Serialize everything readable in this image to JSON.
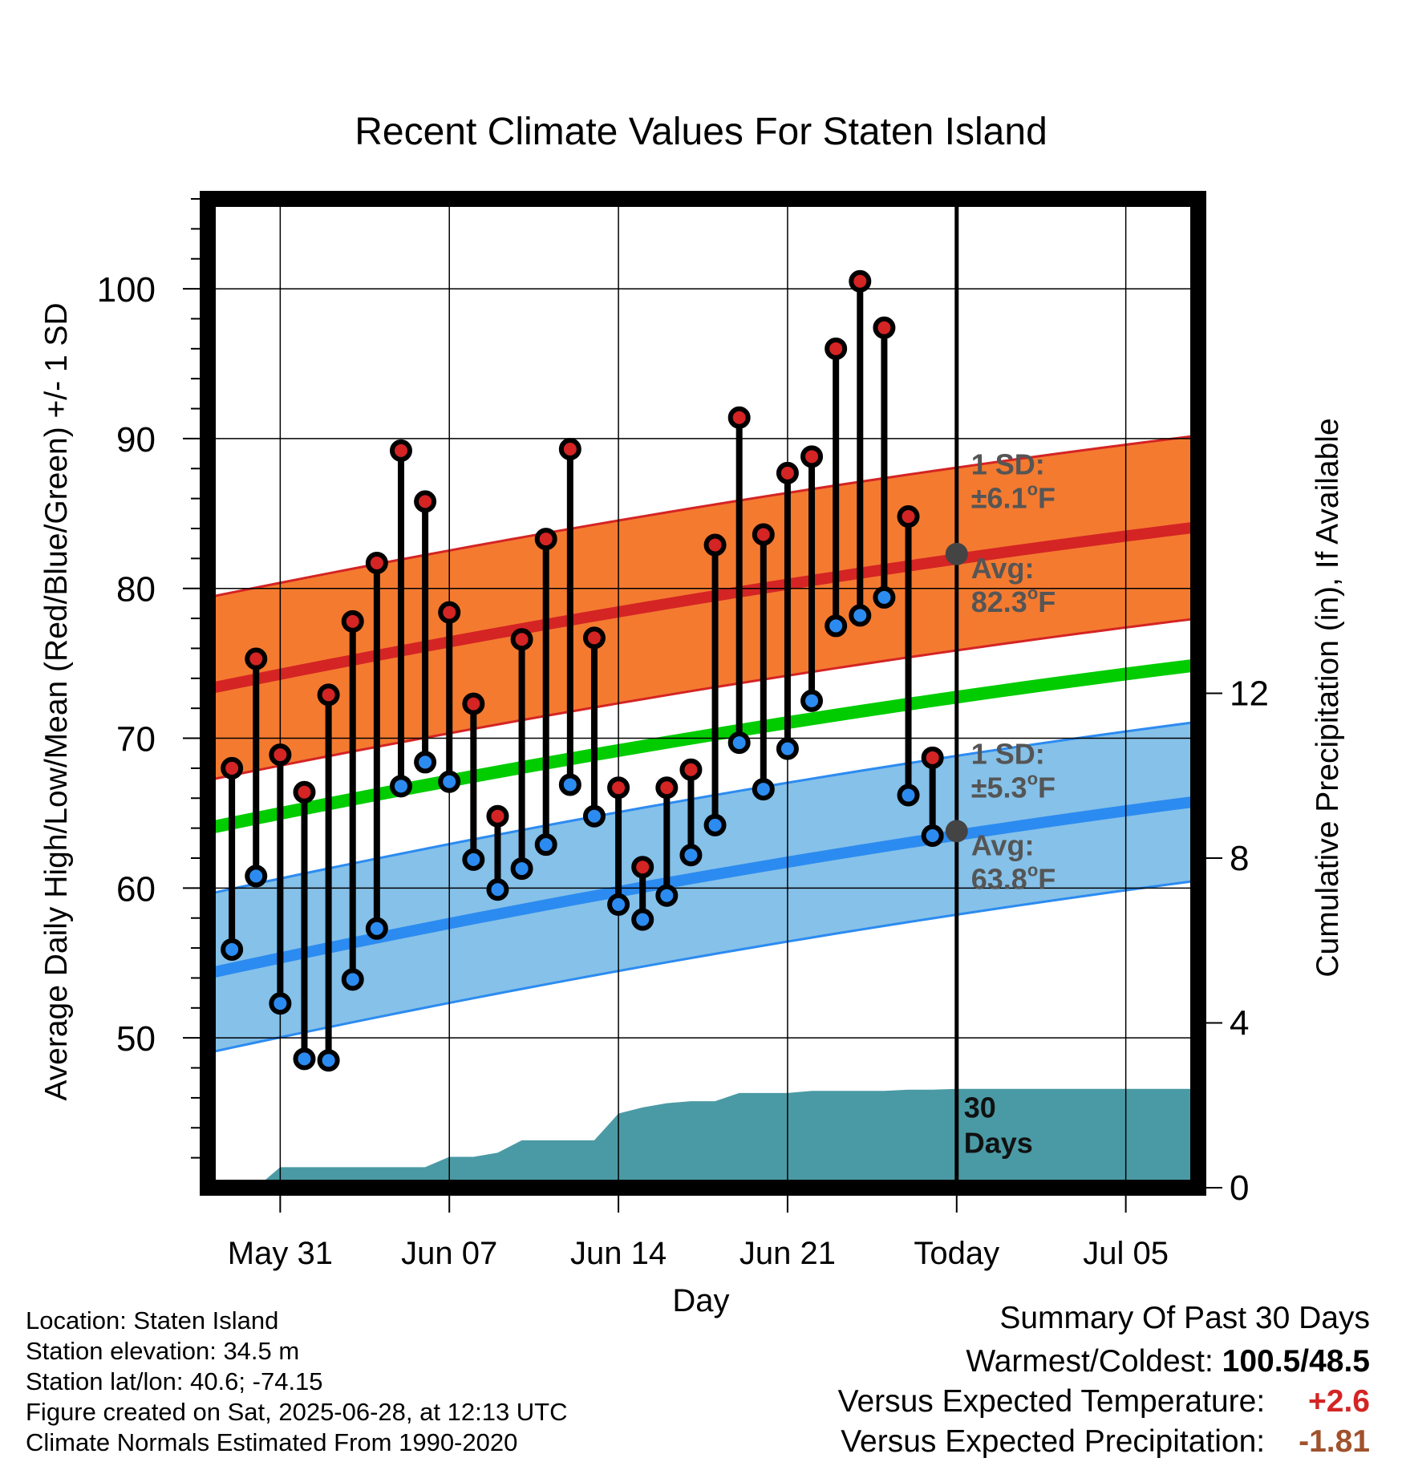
{
  "chart_data": {
    "type": "line",
    "title": "Recent Climate Values For Staten Island",
    "xlabel": "Day",
    "ylabel": "Average Daily High/Low/Mean (Red/Blue/Green) +/- 1 SD",
    "y2label": "Cumulative Precipitation (in), If Available",
    "ylim": [
      40,
      106
    ],
    "y2lim": [
      0,
      24
    ],
    "yticks": [
      50,
      60,
      70,
      80,
      90,
      100
    ],
    "y2ticks": [
      0,
      4,
      8,
      12
    ],
    "xlim": [
      "2025-05-28",
      "2025-07-08"
    ],
    "xticks": [
      "May 31",
      "Jun 07",
      "Jun 14",
      "Jun 21",
      "Today",
      "Jul 05"
    ],
    "xtick_dates": [
      "2025-05-31",
      "2025-06-07",
      "2025-06-14",
      "2025-06-21",
      "2025-06-28",
      "2025-07-05"
    ],
    "today": "2025-06-28",
    "today_label": "Today",
    "grid": true,
    "normals": {
      "high_avg": {
        "start": 73.3,
        "end": 84.1,
        "today": 82.3,
        "sd": 6.1,
        "color": "#d42424"
      },
      "low_avg": {
        "start": 54.3,
        "end": 65.8,
        "today": 63.8,
        "sd": 5.3,
        "color": "#2c8bf0"
      },
      "mean_avg": {
        "start": 64.0,
        "end": 74.9,
        "color": "#00cc00"
      },
      "high_band_color": "#f47a30",
      "low_band_color": "#85c1e9"
    },
    "daily": {
      "dates": [
        "2025-05-29",
        "2025-05-30",
        "2025-05-31",
        "2025-06-01",
        "2025-06-02",
        "2025-06-03",
        "2025-06-04",
        "2025-06-05",
        "2025-06-06",
        "2025-06-07",
        "2025-06-08",
        "2025-06-09",
        "2025-06-10",
        "2025-06-11",
        "2025-06-12",
        "2025-06-13",
        "2025-06-14",
        "2025-06-15",
        "2025-06-16",
        "2025-06-17",
        "2025-06-18",
        "2025-06-19",
        "2025-06-20",
        "2025-06-21",
        "2025-06-22",
        "2025-06-23",
        "2025-06-24",
        "2025-06-25",
        "2025-06-26",
        "2025-06-27"
      ],
      "highs": [
        68.0,
        75.3,
        68.9,
        66.4,
        72.9,
        77.8,
        81.7,
        89.2,
        85.8,
        78.4,
        72.3,
        64.8,
        76.6,
        83.3,
        89.3,
        76.7,
        66.7,
        61.4,
        66.7,
        67.9,
        82.9,
        91.4,
        83.6,
        87.7,
        88.8,
        96.0,
        100.5,
        97.4,
        84.8,
        68.7
      ],
      "lows": [
        55.9,
        60.8,
        52.3,
        48.6,
        48.5,
        53.9,
        57.3,
        66.8,
        68.4,
        67.1,
        61.9,
        59.9,
        61.3,
        62.9,
        66.9,
        64.8,
        58.9,
        57.9,
        59.5,
        62.2,
        64.2,
        69.7,
        66.6,
        69.3,
        72.5,
        77.5,
        78.2,
        79.4,
        66.2,
        63.5
      ],
      "high_color": "#d42424",
      "low_color": "#2c8bf0"
    },
    "precip": {
      "dates": [
        "2025-05-28",
        "2025-05-29",
        "2025-05-30",
        "2025-05-31",
        "2025-06-01",
        "2025-06-02",
        "2025-06-03",
        "2025-06-04",
        "2025-06-05",
        "2025-06-06",
        "2025-06-07",
        "2025-06-08",
        "2025-06-09",
        "2025-06-10",
        "2025-06-11",
        "2025-06-12",
        "2025-06-13",
        "2025-06-14",
        "2025-06-15",
        "2025-06-16",
        "2025-06-17",
        "2025-06-18",
        "2025-06-19",
        "2025-06-20",
        "2025-06-21",
        "2025-06-22",
        "2025-06-23",
        "2025-06-24",
        "2025-06-25",
        "2025-06-26",
        "2025-06-27",
        "2025-06-28",
        "2025-07-08"
      ],
      "cumulative": [
        0,
        0,
        0,
        0.5,
        0.5,
        0.5,
        0.5,
        0.5,
        0.5,
        0.5,
        0.75,
        0.75,
        0.85,
        1.15,
        1.15,
        1.15,
        1.15,
        1.8,
        1.95,
        2.05,
        2.1,
        2.1,
        2.3,
        2.3,
        2.3,
        2.35,
        2.35,
        2.35,
        2.35,
        2.38,
        2.38,
        2.4,
        2.4
      ],
      "color": "#4a9aa5",
      "label_count": "30",
      "label_unit": "Days"
    },
    "annotations": {
      "high_sd_title": "1 SD:",
      "high_sd_value": "±6.1",
      "high_avg_title": "Avg:",
      "high_avg_value": "82.3",
      "low_sd_title": "1 SD:",
      "low_sd_value": "±5.3",
      "low_avg_title": "Avg:",
      "low_avg_value": "63.8",
      "deg_symbol": "o",
      "unit": "F"
    }
  },
  "footer": {
    "location": "Location: Staten Island",
    "elevation": "Station elevation: 34.5 m",
    "latlon": "Station lat/lon: 40.6; -74.15",
    "created": "Figure created on Sat, 2025-06-28, at 12:13 UTC",
    "normals": "Climate Normals Estimated From 1990-2020"
  },
  "summary": {
    "heading": "Summary Of Past 30 Days",
    "warmest_label": "Warmest/Coldest:",
    "warmest_value": "100.5/48.5",
    "temp_label": "Versus Expected Temperature:",
    "temp_value": "+2.6",
    "temp_color": "#d42424",
    "precip_label": "Versus Expected Precipitation:",
    "precip_value": "-1.81",
    "precip_color": "#a0522d"
  }
}
